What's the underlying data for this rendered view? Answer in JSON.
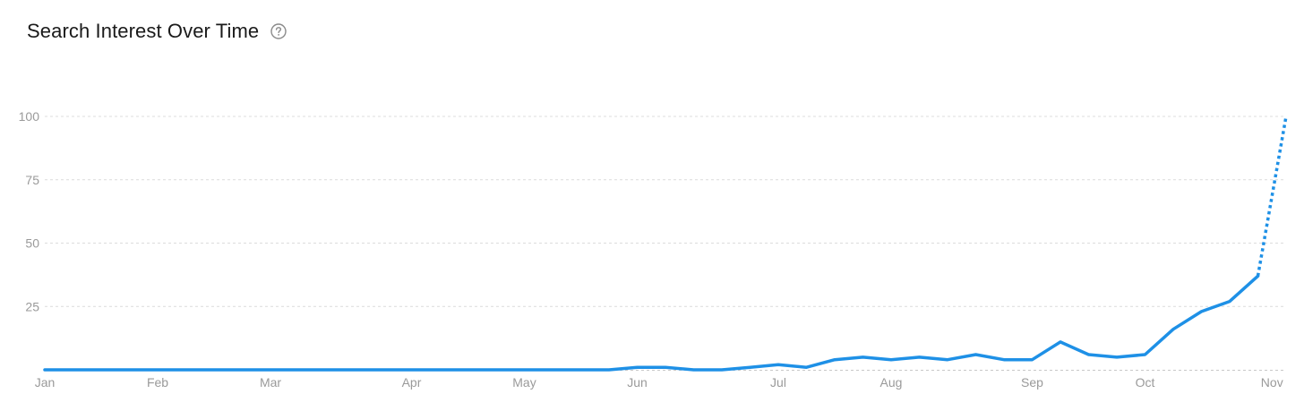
{
  "header": {
    "title": "Search Interest Over Time",
    "help_icon": "question-circle-icon"
  },
  "colors": {
    "line": "#1e90e6",
    "grid": "#dcdcdc",
    "tick_text": "#9a9a9a",
    "title_text": "#1a1a1a"
  },
  "chart_data": {
    "type": "line",
    "title": "Search Interest Over Time",
    "xlabel": "",
    "ylabel": "",
    "ylim": [
      0,
      100
    ],
    "yticks": [
      25,
      50,
      75,
      100
    ],
    "grid": true,
    "legend": "none",
    "xtick_labels": [
      "Jan",
      "Feb",
      "Mar",
      "Apr",
      "May",
      "Jun",
      "Jul",
      "Aug",
      "Sep",
      "Oct",
      "Nov"
    ],
    "xtick_positions": [
      0,
      4,
      8,
      13,
      17,
      21,
      26,
      30,
      35,
      39,
      43.5
    ],
    "series": [
      {
        "values": [
          [
            0,
            0
          ],
          [
            4,
            0
          ],
          [
            8,
            0
          ],
          [
            13,
            0
          ],
          [
            17,
            0
          ],
          [
            20,
            0
          ],
          [
            21,
            1
          ],
          [
            22,
            1
          ],
          [
            23,
            0
          ],
          [
            24,
            0
          ],
          [
            25,
            1
          ],
          [
            26,
            2
          ],
          [
            27,
            1
          ],
          [
            28,
            4
          ],
          [
            29,
            5
          ],
          [
            30,
            4
          ],
          [
            31,
            5
          ],
          [
            32,
            4
          ],
          [
            33,
            6
          ],
          [
            34,
            4
          ],
          [
            35,
            4
          ],
          [
            36,
            11
          ],
          [
            37,
            6
          ],
          [
            38,
            5
          ],
          [
            39,
            6
          ],
          [
            40,
            16
          ],
          [
            41,
            23
          ],
          [
            42,
            27
          ],
          [
            43,
            37
          ]
        ]
      },
      {
        "style": "dotted",
        "values": [
          [
            43,
            37
          ],
          [
            44,
            100
          ]
        ]
      }
    ]
  }
}
